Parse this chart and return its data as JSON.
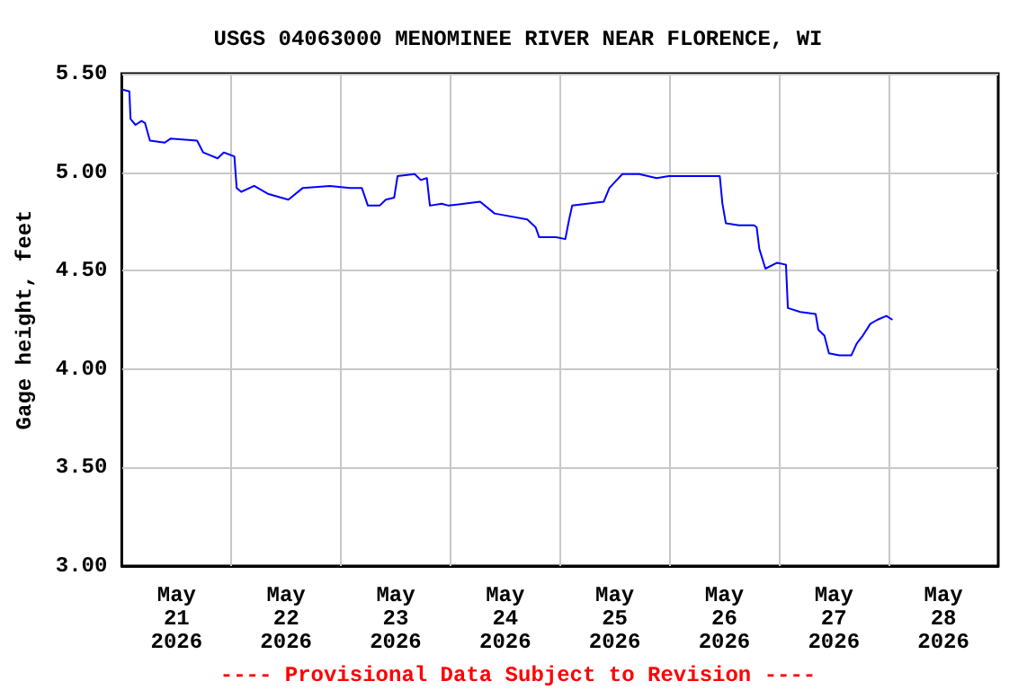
{
  "chart_data": {
    "type": "line",
    "title": "USGS 04063000 MENOMINEE RIVER NEAR FLORENCE, WI",
    "ylabel": "Gage height, feet",
    "annotations": [
      "---- Provisional Data Subject to Revision ----"
    ],
    "x": [
      "2026-05-21T00:00",
      "2026-05-21T01:40",
      "2026-05-21T01:55",
      "2026-05-21T03:00",
      "2026-05-21T04:20",
      "2026-05-21T05:05",
      "2026-05-21T06:10",
      "2026-05-21T09:25",
      "2026-05-21T10:40",
      "2026-05-21T16:30",
      "2026-05-21T17:50",
      "2026-05-21T21:00",
      "2026-05-21T22:20",
      "2026-05-22T00:40",
      "2026-05-22T01:10",
      "2026-05-22T02:10",
      "2026-05-22T05:00",
      "2026-05-22T08:00",
      "2026-05-22T12:30",
      "2026-05-22T15:40",
      "2026-05-22T21:35",
      "2026-05-23T02:00",
      "2026-05-23T04:35",
      "2026-05-23T05:55",
      "2026-05-23T08:30",
      "2026-05-23T09:50",
      "2026-05-23T11:40",
      "2026-05-23T12:25",
      "2026-05-23T16:10",
      "2026-05-23T17:30",
      "2026-05-23T18:50",
      "2026-05-23T19:30",
      "2026-05-23T22:05",
      "2026-05-23T23:35",
      "2026-05-24T06:30",
      "2026-05-24T09:40",
      "2026-05-24T16:50",
      "2026-05-24T18:40",
      "2026-05-24T19:25",
      "2026-05-24T23:10",
      "2026-05-25T01:10",
      "2026-05-25T02:00",
      "2026-05-25T02:40",
      "2026-05-25T09:35",
      "2026-05-25T10:50",
      "2026-05-25T13:40",
      "2026-05-25T17:20",
      "2026-05-25T21:10",
      "2026-05-25T23:50",
      "2026-05-26T07:30",
      "2026-05-26T11:00",
      "2026-05-26T11:35",
      "2026-05-26T12:20",
      "2026-05-26T15:10",
      "2026-05-26T18:30",
      "2026-05-26T19:05",
      "2026-05-26T19:40",
      "2026-05-26T21:00",
      "2026-05-26T23:35",
      "2026-05-27T01:30",
      "2026-05-27T01:55",
      "2026-05-27T04:40",
      "2026-05-27T08:00",
      "2026-05-27T08:35",
      "2026-05-27T09:55",
      "2026-05-27T10:55",
      "2026-05-27T13:10",
      "2026-05-27T15:50",
      "2026-05-27T17:00",
      "2026-05-27T18:20",
      "2026-05-27T20:00",
      "2026-05-27T21:30",
      "2026-05-27T23:30",
      "2026-05-28T00:50"
    ],
    "series": [
      {
        "color": "#0000ff",
        "values": [
          5.42,
          5.41,
          5.27,
          5.24,
          5.26,
          5.25,
          5.16,
          5.15,
          5.17,
          5.16,
          5.1,
          5.07,
          5.1,
          5.08,
          4.92,
          4.9,
          4.93,
          4.89,
          4.86,
          4.92,
          4.93,
          4.92,
          4.92,
          4.83,
          4.83,
          4.86,
          4.87,
          4.98,
          4.99,
          4.96,
          4.97,
          4.83,
          4.84,
          4.83,
          4.85,
          4.79,
          4.76,
          4.72,
          4.67,
          4.67,
          4.66,
          4.76,
          4.83,
          4.85,
          4.92,
          4.99,
          4.99,
          4.97,
          4.98,
          4.98,
          4.98,
          4.84,
          4.74,
          4.73,
          4.73,
          4.72,
          4.61,
          4.51,
          4.54,
          4.53,
          4.31,
          4.29,
          4.28,
          4.2,
          4.17,
          4.08,
          4.07,
          4.07,
          4.13,
          4.17,
          4.23,
          4.25,
          4.27,
          4.25
        ]
      }
    ],
    "xlim": [
      "2026-05-21T00:00",
      "2026-05-29T00:00"
    ],
    "xticks": [
      {
        "value": "2026-05-21T12:00",
        "label": "May\n21\n2026"
      },
      {
        "value": "2026-05-22T12:00",
        "label": "May\n22\n2026"
      },
      {
        "value": "2026-05-23T12:00",
        "label": "May\n23\n2026"
      },
      {
        "value": "2026-05-24T12:00",
        "label": "May\n24\n2026"
      },
      {
        "value": "2026-05-25T12:00",
        "label": "May\n25\n2026"
      },
      {
        "value": "2026-05-26T12:00",
        "label": "May\n26\n2026"
      },
      {
        "value": "2026-05-27T12:00",
        "label": "May\n27\n2026"
      },
      {
        "value": "2026-05-28T12:00",
        "label": "May\n28\n2026"
      },
      {
        "value": "2026-05-22T00:00",
        "label": null
      },
      {
        "value": "2026-05-23T00:00",
        "label": null
      },
      {
        "value": "2026-05-24T00:00",
        "label": null
      },
      {
        "value": "2026-05-25T00:00",
        "label": null
      },
      {
        "value": "2026-05-26T00:00",
        "label": null
      },
      {
        "value": "2026-05-27T00:00",
        "label": null
      },
      {
        "value": "2026-05-28T00:00",
        "label": null
      }
    ],
    "ylim": [
      3.0,
      5.5
    ],
    "yticks": [
      {
        "value": 3.0,
        "label": "3.00"
      },
      {
        "value": 3.5,
        "label": "3.50"
      },
      {
        "value": 4.0,
        "label": "4.00"
      },
      {
        "value": 4.5,
        "label": "4.50"
      },
      {
        "value": 5.0,
        "label": "5.00"
      },
      {
        "value": 5.5,
        "label": "5.50"
      }
    ],
    "grid": true,
    "marker": "none",
    "line_style": "solid"
  }
}
